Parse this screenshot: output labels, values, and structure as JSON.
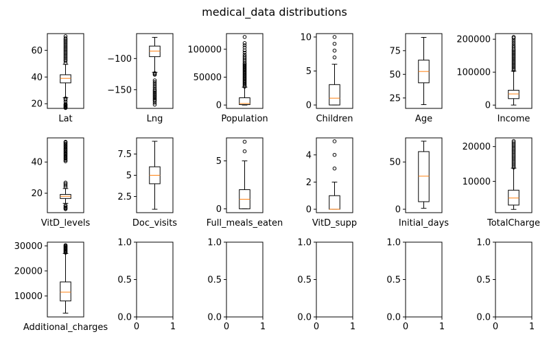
{
  "title": "medical_data distributions",
  "colors": {
    "box": "#000000",
    "median": "#ff7f0e",
    "background": "#ffffff"
  },
  "chart_data": [
    {
      "type": "boxplot",
      "xlabel": "Lat",
      "ylim": [
        16.5,
        72.5
      ],
      "yticks": [
        20,
        40,
        60
      ],
      "stats": {
        "whislo": 24.5,
        "q1": 35.6,
        "median": 39.0,
        "q3": 41.7,
        "whishi": 49.5
      },
      "fliers": [
        16.8,
        17.3,
        17.8,
        18.3,
        18.8,
        19.3,
        19.8,
        21.5,
        23.0,
        24.0,
        50.5,
        52.0,
        53.0,
        54.0,
        55.0,
        56.0,
        57.0,
        58.0,
        59.0,
        60.0,
        61.0,
        62.0,
        63.0,
        64.0,
        65.0,
        66.0,
        67.0,
        68.0,
        69.0,
        70.5
      ]
    },
    {
      "type": "boxplot",
      "xlabel": "Lng",
      "ylim": [
        -180,
        -60
      ],
      "yticks": [
        -150,
        -100
      ],
      "stats": {
        "whislo": -122.0,
        "q1": -97.0,
        "median": -88.0,
        "q3": -80.0,
        "whishi": -66.0
      },
      "fliers": [
        -123.5,
        -124.5,
        -126,
        -135,
        -138,
        -141,
        -144,
        -147,
        -150,
        -152,
        -154,
        -156,
        -158,
        -160,
        -162,
        -164,
        -166,
        -168,
        -171,
        -174
      ]
    },
    {
      "type": "boxplot",
      "xlabel": "Population",
      "ylim": [
        -6000,
        128000
      ],
      "yticks": [
        0,
        50000,
        100000
      ],
      "stats": {
        "whislo": 0,
        "q1": 740,
        "median": 2770,
        "q3": 13000,
        "whishi": 32000
      },
      "fliers": [
        33000,
        35000,
        37000,
        39000,
        41000,
        43000,
        45000,
        47000,
        49000,
        51000,
        53000,
        55000,
        57000,
        59000,
        61000,
        63000,
        65000,
        67000,
        69000,
        71000,
        73000,
        75000,
        78000,
        81000,
        84000,
        87000,
        90000,
        94000,
        98000,
        103000,
        107000,
        111000,
        122000
      ]
    },
    {
      "type": "boxplot",
      "xlabel": "Children",
      "ylim": [
        -0.5,
        10.5
      ],
      "yticks": [
        0,
        5,
        10
      ],
      "stats": {
        "whislo": 0,
        "q1": 0,
        "median": 1,
        "q3": 3,
        "whishi": 6
      },
      "fliers": [
        7,
        8,
        9,
        10
      ]
    },
    {
      "type": "boxplot",
      "xlabel": "Age",
      "ylim": [
        14,
        93
      ],
      "yticks": [
        25,
        50,
        75
      ],
      "stats": {
        "whislo": 18,
        "q1": 41,
        "median": 53,
        "q3": 65,
        "whishi": 89
      },
      "fliers": []
    },
    {
      "type": "boxplot",
      "xlabel": "Income",
      "ylim": [
        -10000,
        217000
      ],
      "yticks": [
        0,
        100000,
        200000
      ],
      "stats": {
        "whislo": 154,
        "q1": 19600,
        "median": 33800,
        "q3": 45000,
        "whishi": 103000
      },
      "fliers": [
        106000,
        110000,
        114000,
        118000,
        122000,
        126000,
        130000,
        134000,
        138000,
        142000,
        146000,
        150000,
        154000,
        158000,
        162000,
        166000,
        170000,
        175000,
        180000,
        186000,
        192000,
        198000,
        204000,
        207000
      ]
    },
    {
      "type": "boxplot",
      "xlabel": "VitD_levels",
      "ylim": [
        7.5,
        55.5
      ],
      "yticks": [
        20,
        40
      ],
      "stats": {
        "whislo": 13.5,
        "q1": 16.6,
        "median": 18.0,
        "q3": 19.2,
        "whishi": 23.0
      },
      "fliers": [
        9.8,
        10.3,
        10.8,
        11.5,
        12.2,
        24.0,
        25.0,
        26.0,
        26.8,
        40.5,
        41.2,
        42.0,
        42.7,
        43.5,
        44.2,
        45.0,
        45.7,
        46.5,
        47.2,
        48.0,
        48.7,
        49.5,
        50.2,
        51.0,
        51.7,
        52.5,
        53.0
      ]
    },
    {
      "type": "boxplot",
      "xlabel": "Doc_visits",
      "ylim": [
        0.6,
        9.4
      ],
      "yticks": [
        2.5,
        5.0,
        7.5
      ],
      "stats": {
        "whislo": 1,
        "q1": 4,
        "median": 5,
        "q3": 6,
        "whishi": 9
      },
      "fliers": []
    },
    {
      "type": "boxplot",
      "xlabel": "Full_meals_eaten",
      "ylim": [
        -0.4,
        7.4
      ],
      "yticks": [
        0,
        5
      ],
      "stats": {
        "whislo": 0,
        "q1": 0,
        "median": 1,
        "q3": 2,
        "whishi": 5
      },
      "fliers": [
        6,
        7
      ]
    },
    {
      "type": "boxplot",
      "xlabel": "VitD_supp",
      "ylim": [
        -0.25,
        5.25
      ],
      "yticks": [
        0,
        2,
        4
      ],
      "stats": {
        "whislo": 0,
        "q1": 0,
        "median": 0,
        "q3": 1,
        "whishi": 2
      },
      "fliers": [
        3,
        4,
        5
      ]
    },
    {
      "type": "boxplot",
      "xlabel": "Initial_days",
      "ylim": [
        -3.6,
        75.5
      ],
      "yticks": [
        0,
        50
      ],
      "stats": {
        "whislo": 1,
        "q1": 8,
        "median": 35,
        "q3": 61,
        "whishi": 72
      },
      "fliers": []
    },
    {
      "type": "boxplot",
      "xlabel": "TotalCharge",
      "ylim": [
        1000,
        22500
      ],
      "yticks": [
        10000,
        20000
      ],
      "stats": {
        "whislo": 1940,
        "q1": 3180,
        "median": 5210,
        "q3": 7460,
        "whishi": 13800
      },
      "fliers": [
        14000,
        14400,
        14800,
        15200,
        15600,
        16000,
        16400,
        16800,
        17200,
        17600,
        18000,
        18400,
        18800,
        19200,
        19600,
        20000,
        20400,
        20800,
        21200,
        21600
      ]
    },
    {
      "type": "boxplot",
      "xlabel": "Additional_charges",
      "ylim": [
        1600,
        31500
      ],
      "yticks": [
        10000,
        20000,
        30000
      ],
      "stats": {
        "whislo": 3125,
        "q1": 7990,
        "median": 11500,
        "q3": 15600,
        "whishi": 27000
      },
      "fliers": [
        27300,
        27600,
        27900,
        28200,
        28500,
        28800,
        29100,
        29400,
        29700,
        30000,
        30300
      ]
    },
    {
      "type": "empty",
      "xlabel": "",
      "xlim": [
        0,
        1
      ],
      "ylim": [
        0,
        1
      ],
      "xticks": [
        "0",
        "1"
      ],
      "yticks": [
        "0.0",
        "0.5",
        "1.0"
      ]
    },
    {
      "type": "empty",
      "xlabel": "",
      "xlim": [
        0,
        1
      ],
      "ylim": [
        0,
        1
      ],
      "xticks": [
        "0",
        "1"
      ],
      "yticks": [
        "0.0",
        "0.5",
        "1.0"
      ]
    },
    {
      "type": "empty",
      "xlabel": "",
      "xlim": [
        0,
        1
      ],
      "ylim": [
        0,
        1
      ],
      "xticks": [
        "0",
        "1"
      ],
      "yticks": [
        "0.0",
        "0.5",
        "1.0"
      ]
    },
    {
      "type": "empty",
      "xlabel": "",
      "xlim": [
        0,
        1
      ],
      "ylim": [
        0,
        1
      ],
      "xticks": [
        "0",
        "1"
      ],
      "yticks": [
        "0.0",
        "0.5",
        "1.0"
      ]
    },
    {
      "type": "empty",
      "xlabel": "",
      "xlim": [
        0,
        1
      ],
      "ylim": [
        0,
        1
      ],
      "xticks": [
        "0",
        "1"
      ],
      "yticks": [
        "0.0",
        "0.5",
        "1.0"
      ]
    }
  ]
}
